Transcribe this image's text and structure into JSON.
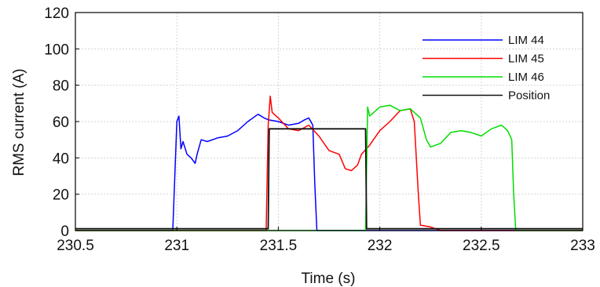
{
  "chart_data": {
    "type": "line",
    "title": "",
    "xlabel": "Time (s)",
    "ylabel": "RMS current (A)",
    "xlim": [
      230.5,
      233
    ],
    "ylim": [
      0,
      120
    ],
    "xticks": [
      "230.5",
      "231",
      "231.5",
      "232",
      "232.5",
      "233"
    ],
    "xtick_values": [
      230.5,
      231,
      231.5,
      232,
      232.5,
      233
    ],
    "yticks": [
      "0",
      "20",
      "40",
      "60",
      "80",
      "100",
      "120"
    ],
    "ytick_values": [
      0,
      20,
      40,
      60,
      80,
      100,
      120
    ],
    "grid": true,
    "legend_position": "top-right",
    "series": [
      {
        "name": "LIM 44",
        "color": "#0000ff",
        "x": [
          230.5,
          230.98,
          230.99,
          231.0,
          231.01,
          231.02,
          231.03,
          231.05,
          231.07,
          231.09,
          231.1,
          231.12,
          231.15,
          231.2,
          231.25,
          231.3,
          231.35,
          231.4,
          231.43,
          231.45,
          231.5,
          231.55,
          231.6,
          231.63,
          231.65,
          231.67,
          231.68,
          231.69,
          233.0
        ],
        "y": [
          0,
          0,
          30,
          60,
          63,
          45,
          49,
          42,
          40,
          37,
          42,
          50,
          49,
          51,
          52,
          55,
          60,
          64,
          62,
          61,
          60,
          58,
          59,
          61,
          62,
          58,
          25,
          0,
          0
        ]
      },
      {
        "name": "LIM 45",
        "color": "#ff0000",
        "x": [
          230.5,
          231.44,
          231.45,
          231.46,
          231.47,
          231.5,
          231.55,
          231.6,
          231.65,
          231.7,
          231.75,
          231.8,
          231.83,
          231.86,
          231.89,
          231.91,
          231.95,
          232.0,
          232.05,
          232.1,
          232.15,
          232.17,
          232.19,
          232.2,
          232.25,
          232.3,
          233.0
        ],
        "y": [
          0,
          0,
          58,
          74,
          65,
          62,
          56,
          55,
          58,
          52,
          44,
          42,
          34,
          33,
          36,
          42,
          47,
          55,
          60,
          66,
          67,
          60,
          20,
          3,
          2,
          0,
          0
        ]
      },
      {
        "name": "LIM 46",
        "color": "#00dd00",
        "x": [
          230.5,
          231.93,
          231.94,
          231.95,
          231.97,
          232.0,
          232.05,
          232.1,
          232.15,
          232.18,
          232.2,
          232.23,
          232.25,
          232.3,
          232.35,
          232.4,
          232.45,
          232.5,
          232.55,
          232.6,
          232.63,
          232.65,
          232.66,
          232.67,
          233.0
        ],
        "y": [
          0,
          0,
          68,
          63,
          65,
          68,
          69,
          66,
          67,
          64,
          62,
          50,
          46,
          48,
          54,
          55,
          54,
          52,
          56,
          58,
          55,
          50,
          20,
          0,
          0
        ]
      },
      {
        "name": "Position",
        "color": "#111111",
        "x": [
          230.5,
          231.45,
          231.455,
          231.93,
          231.935,
          233.0
        ],
        "y": [
          1,
          1,
          56,
          56,
          1,
          1
        ]
      }
    ]
  }
}
